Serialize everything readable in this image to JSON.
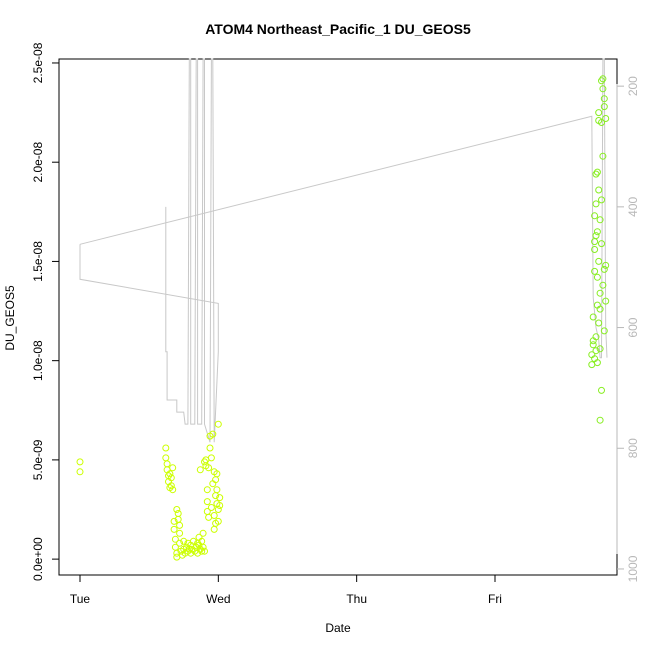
{
  "chart_data": {
    "type": "scatter",
    "title": "ATOM4 Northeast_Pacific_1 DU_GEOS5",
    "xlabel": "Date",
    "ylabel": "DU_GEOS5",
    "x_ticks": [
      "Tue",
      "Wed",
      "Thu",
      "Fri"
    ],
    "y_ticks": [
      "0.0e+00",
      "5.0e-09",
      "1.0e-08",
      "1.5e-08",
      "2.0e-08",
      "2.5e-08"
    ],
    "y_tick_values": [
      0,
      5e-09,
      1e-08,
      1.5e-08,
      2e-08,
      2.5e-08
    ],
    "ylim": [
      -8e-10,
      2.52e-08
    ],
    "xlim": [
      -0.1,
      3.85
    ],
    "y2_ticks": [
      "200",
      "400",
      "600",
      "800",
      "1000"
    ],
    "y2_tick_values": [
      200,
      400,
      600,
      800,
      1000
    ],
    "y2lim": [
      1010,
      155
    ],
    "point_colors": {
      "low": "#ccff00",
      "high": "#88ee22"
    },
    "line_color": "#c8c8c8",
    "points": [
      [
        0.0,
        4.9e-09
      ],
      [
        0.0,
        4.4e-09
      ],
      [
        0.62,
        5.6e-09
      ],
      [
        0.62,
        5.1e-09
      ],
      [
        0.63,
        4.8e-09
      ],
      [
        0.63,
        4.5e-09
      ],
      [
        0.64,
        4.2e-09
      ],
      [
        0.64,
        3.9e-09
      ],
      [
        0.65,
        3.6e-09
      ],
      [
        0.65,
        4.3e-09
      ],
      [
        0.66,
        3.7e-09
      ],
      [
        0.66,
        4.1e-09
      ],
      [
        0.67,
        3.5e-09
      ],
      [
        0.67,
        4.6e-09
      ],
      [
        0.68,
        1.9e-09
      ],
      [
        0.68,
        1.5e-09
      ],
      [
        0.69,
        1e-09
      ],
      [
        0.69,
        6e-10
      ],
      [
        0.7,
        3e-10
      ],
      [
        0.7,
        1e-10
      ],
      [
        0.7,
        2.5e-09
      ],
      [
        0.71,
        2.3e-09
      ],
      [
        0.71,
        2e-09
      ],
      [
        0.72,
        1.7e-09
      ],
      [
        0.72,
        1.3e-09
      ],
      [
        0.72,
        8e-10
      ],
      [
        0.73,
        4e-10
      ],
      [
        0.74,
        2e-10
      ],
      [
        0.75,
        5e-10
      ],
      [
        0.75,
        9e-10
      ],
      [
        0.76,
        3e-10
      ],
      [
        0.77,
        6e-10
      ],
      [
        0.78,
        4e-10
      ],
      [
        0.78,
        8e-10
      ],
      [
        0.79,
        5e-10
      ],
      [
        0.8,
        3e-10
      ],
      [
        0.8,
        7e-10
      ],
      [
        0.81,
        5e-10
      ],
      [
        0.82,
        9e-10
      ],
      [
        0.83,
        4e-10
      ],
      [
        0.84,
        6e-10
      ],
      [
        0.85,
        8e-10
      ],
      [
        0.85,
        3e-10
      ],
      [
        0.86,
        7e-10
      ],
      [
        0.86,
        1.1e-09
      ],
      [
        0.87,
        5e-10
      ],
      [
        0.87,
        4.5e-09
      ],
      [
        0.88,
        9e-10
      ],
      [
        0.88,
        4e-10
      ],
      [
        0.89,
        6e-10
      ],
      [
        0.89,
        1.3e-09
      ],
      [
        0.9,
        4e-10
      ],
      [
        0.9,
        4.9e-09
      ],
      [
        0.91,
        5e-09
      ],
      [
        0.91,
        4.7e-09
      ],
      [
        0.92,
        2.9e-09
      ],
      [
        0.92,
        2.4e-09
      ],
      [
        0.92,
        3.5e-09
      ],
      [
        0.93,
        2.1e-09
      ],
      [
        0.93,
        4.6e-09
      ],
      [
        0.94,
        6.2e-09
      ],
      [
        0.94,
        5.6e-09
      ],
      [
        0.95,
        5.1e-09
      ],
      [
        0.95,
        2.6e-09
      ],
      [
        0.96,
        6.3e-09
      ],
      [
        0.96,
        3.8e-09
      ],
      [
        0.97,
        4.4e-09
      ],
      [
        0.97,
        2.2e-09
      ],
      [
        0.98,
        4e-09
      ],
      [
        0.98,
        3.2e-09
      ],
      [
        0.99,
        2.8e-09
      ],
      [
        0.99,
        3.5e-09
      ],
      [
        1.0,
        2.5e-09
      ],
      [
        1.0,
        1.9e-09
      ],
      [
        1.01,
        3.1e-09
      ],
      [
        1.01,
        2.7e-09
      ],
      [
        1.0,
        6.8e-09
      ],
      [
        0.99,
        4.3e-09
      ],
      [
        0.98,
        1.8e-09
      ],
      [
        0.97,
        1.5e-09
      ],
      [
        3.7,
        9.8e-09
      ],
      [
        3.7,
        1.03e-08
      ],
      [
        3.71,
        1.08e-08
      ],
      [
        3.71,
        1.22e-08
      ],
      [
        3.72,
        1.45e-08
      ],
      [
        3.72,
        1.56e-08
      ],
      [
        3.72,
        1.73e-08
      ],
      [
        3.73,
        1.94e-08
      ],
      [
        3.73,
        1.79e-08
      ],
      [
        3.73,
        1.12e-08
      ],
      [
        3.74,
        1.28e-08
      ],
      [
        3.74,
        1.42e-08
      ],
      [
        3.74,
        1.65e-08
      ],
      [
        3.75,
        1.86e-08
      ],
      [
        3.75,
        1.5e-08
      ],
      [
        3.75,
        1.19e-08
      ],
      [
        3.75,
        2.21e-08
      ],
      [
        3.75,
        2.25e-08
      ],
      [
        3.76,
        1.71e-08
      ],
      [
        3.76,
        1.34e-08
      ],
      [
        3.76,
        1.06e-08
      ],
      [
        3.76,
        7e-09
      ],
      [
        3.77,
        8.5e-09
      ],
      [
        3.77,
        1.59e-08
      ],
      [
        3.77,
        1.81e-08
      ],
      [
        3.77,
        2.2e-08
      ],
      [
        3.77,
        2.41e-08
      ],
      [
        3.78,
        2.42e-08
      ],
      [
        3.78,
        2.37e-08
      ],
      [
        3.78,
        2.03e-08
      ],
      [
        3.78,
        1.38e-08
      ],
      [
        3.79,
        1.15e-08
      ],
      [
        3.79,
        1.46e-08
      ],
      [
        3.79,
        2.28e-08
      ],
      [
        3.79,
        2.32e-08
      ],
      [
        3.8,
        2.22e-08
      ],
      [
        3.8,
        1.3e-08
      ],
      [
        3.8,
        1.48e-08
      ],
      [
        3.72,
        1.6e-08
      ],
      [
        3.73,
        1.63e-08
      ],
      [
        3.74,
        1.95e-08
      ],
      [
        3.76,
        1.26e-08
      ],
      [
        3.71,
        1.1e-08
      ],
      [
        3.72,
        1.01e-08
      ],
      [
        3.73,
        1.05e-08
      ],
      [
        3.74,
        9.9e-09
      ]
    ],
    "pressure_line": [
      [
        0.0,
        462
      ],
      [
        0.0,
        520
      ],
      [
        1.0,
        560
      ],
      [
        1.0,
        640
      ],
      [
        0.97,
        790
      ],
      [
        0.96,
        120
      ],
      [
        0.95,
        120
      ],
      [
        0.94,
        790
      ],
      [
        0.9,
        760
      ],
      [
        0.9,
        120
      ],
      [
        0.89,
        120
      ],
      [
        0.88,
        760
      ],
      [
        0.85,
        760
      ],
      [
        0.85,
        120
      ],
      [
        0.84,
        120
      ],
      [
        0.83,
        760
      ],
      [
        0.8,
        760
      ],
      [
        0.8,
        120
      ],
      [
        0.79,
        120
      ],
      [
        0.78,
        760
      ],
      [
        0.76,
        760
      ],
      [
        0.75,
        740
      ],
      [
        0.7,
        740
      ],
      [
        0.7,
        720
      ],
      [
        0.63,
        720
      ],
      [
        0.63,
        640
      ],
      [
        0.62,
        640
      ],
      [
        0.62,
        400
      ]
    ],
    "pressure_line_2": [
      [
        0.0,
        462
      ],
      [
        3.7,
        250
      ],
      [
        3.71,
        550
      ],
      [
        3.73,
        600
      ],
      [
        3.75,
        620
      ],
      [
        3.76,
        650
      ],
      [
        3.77,
        650
      ],
      [
        3.78,
        120
      ],
      [
        3.79,
        120
      ],
      [
        3.8,
        600
      ],
      [
        3.81,
        650
      ]
    ]
  }
}
